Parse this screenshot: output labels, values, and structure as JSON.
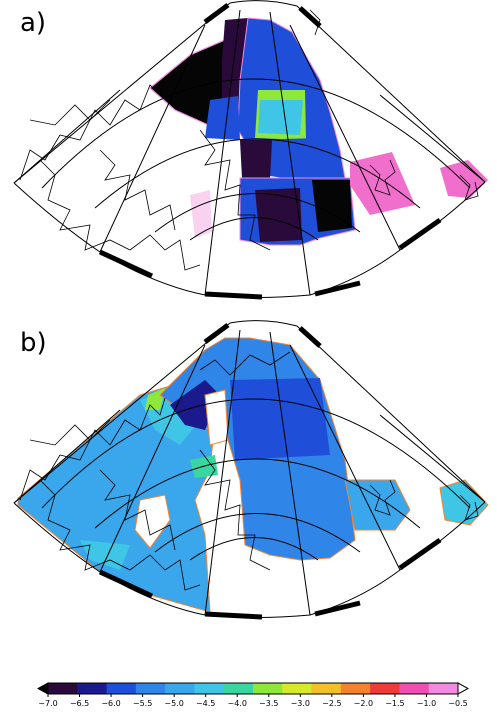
{
  "panels": [
    {
      "label": "a)"
    },
    {
      "label": "b)"
    }
  ],
  "colorbar": {
    "min": -7.0,
    "max": -0.5,
    "ticks": [
      "-7.0",
      "-6.5",
      "-6.0",
      "-5.5",
      "-5.0",
      "-4.5",
      "-4.0",
      "-3.5",
      "-3.0",
      "-2.5",
      "-2.0",
      "-1.5",
      "-1.0",
      "-0.5"
    ],
    "colors": [
      "#2a0a3a",
      "#1a1a8c",
      "#1f4fd8",
      "#2f86e8",
      "#3aa6ec",
      "#3fc6e6",
      "#3ad6a0",
      "#8ee83c",
      "#d6ea2a",
      "#f2c12a",
      "#f5832e",
      "#ee3a3a",
      "#ee4fb0",
      "#f28ae0"
    ],
    "over_color": "#ffffff",
    "under_color": "#000000"
  },
  "colors": {
    "black": "#050505",
    "darkpurple": "#2a0a3a",
    "blue": "#1f4fd8",
    "midblue": "#2f86e8",
    "lightblue": "#3aa6ec",
    "cyan": "#3fc6e6",
    "green": "#8ee83c",
    "pink": "#f06fcc",
    "lightpink": "#f8d2f0"
  }
}
